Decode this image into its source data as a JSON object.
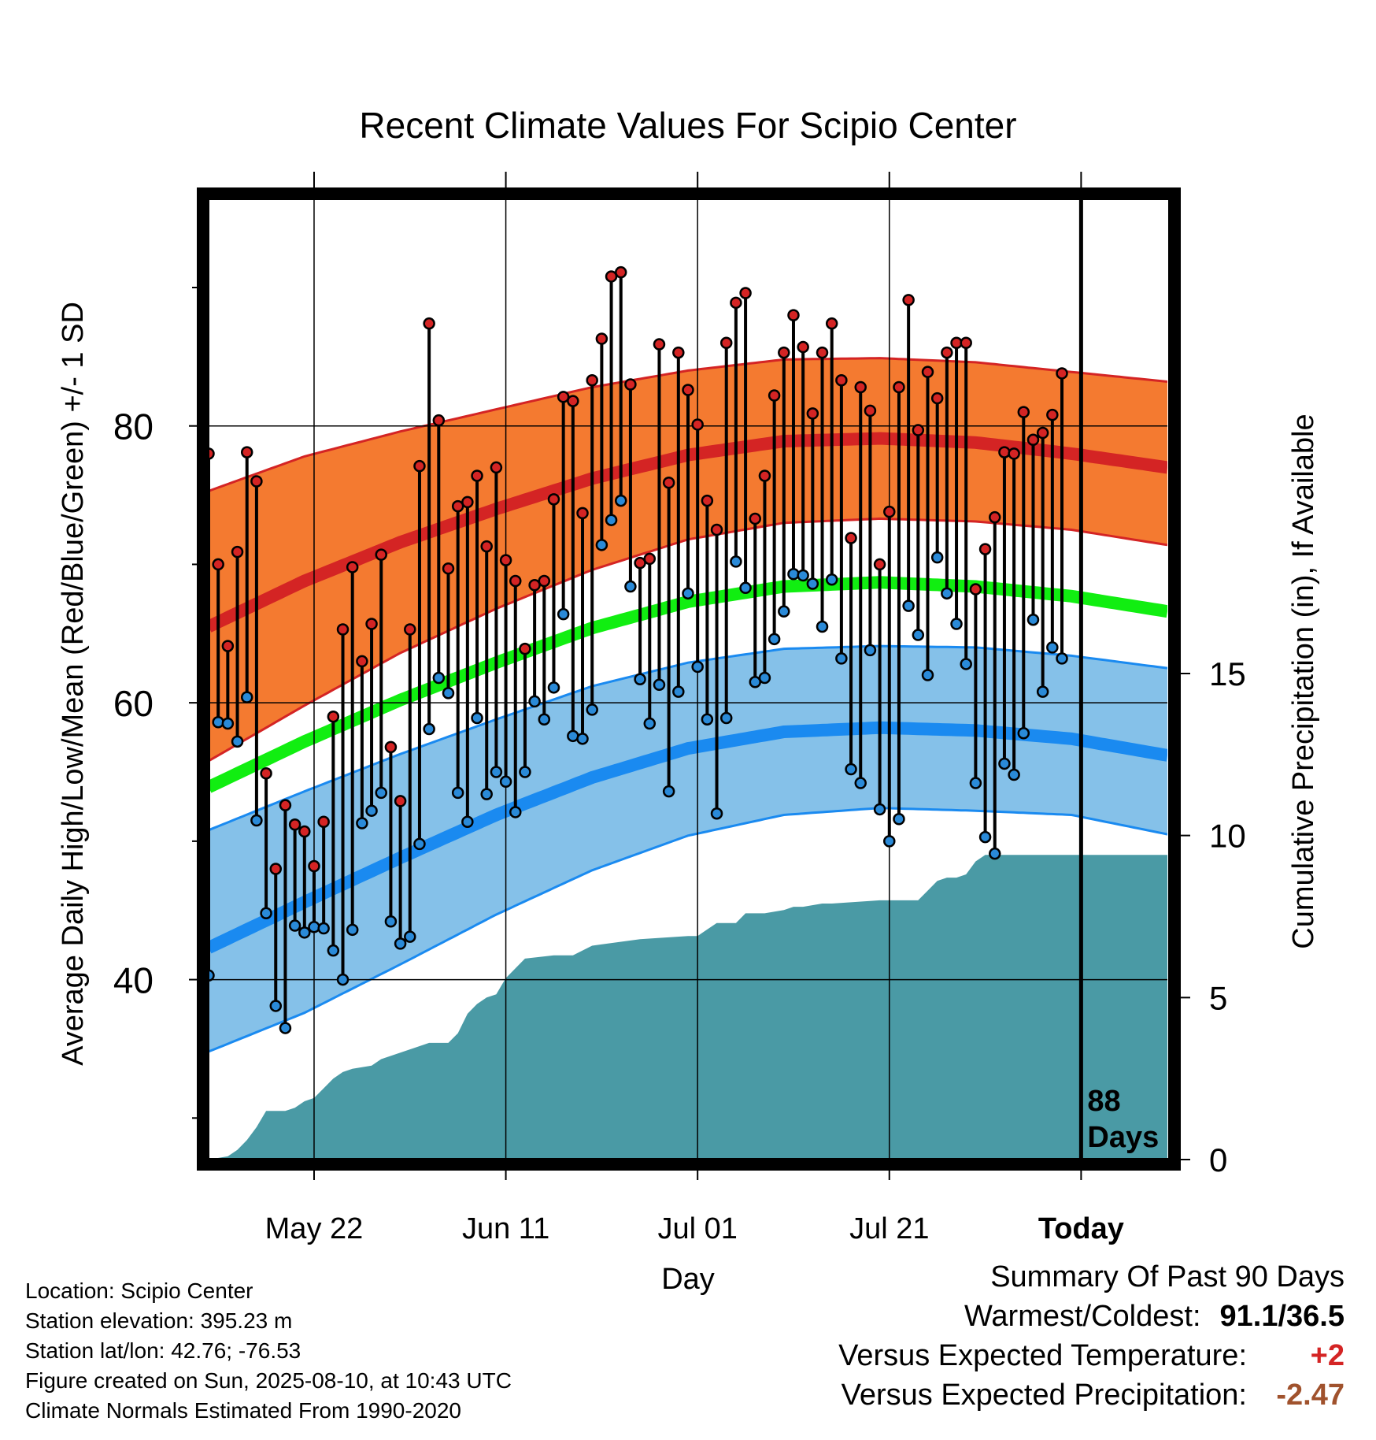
{
  "chart_data": {
    "type": "line",
    "title": "Recent Climate Values For Scipio Center",
    "xlabel": "Day",
    "ylabel": "Average Daily High/Low/Mean (Red/Blue/Green) +/- 1 SD",
    "y2label": "Cumulative Precipitation (in), If Available",
    "x_tick_labels": [
      "May 22",
      "Jun 11",
      "Jul 01",
      "Jul 21",
      "Today"
    ],
    "x_tick_day_index": [
      11,
      31,
      51,
      71,
      91
    ],
    "x_range_days": [
      0,
      100
    ],
    "ylim": [
      27,
      97
    ],
    "y_ticks": [
      40,
      60,
      80
    ],
    "y_minor_ticks": [
      30,
      50,
      70,
      90
    ],
    "y2lim": [
      0,
      29.9
    ],
    "y2_ticks": [
      0,
      5,
      10,
      15
    ],
    "today_marker_day": 91,
    "today_label": [
      "88",
      "Days"
    ],
    "grid": true,
    "normals": {
      "days": [
        0,
        10,
        20,
        30,
        40,
        50,
        60,
        70,
        80,
        90,
        100
      ],
      "mean_high": [
        65.5,
        68.8,
        71.6,
        74.0,
        76.2,
        77.9,
        78.9,
        79.1,
        78.8,
        78.0,
        77.0
      ],
      "high_upper": [
        75.3,
        77.8,
        79.6,
        81.2,
        82.8,
        84.0,
        84.8,
        84.9,
        84.6,
        83.9,
        83.2
      ],
      "high_lower": [
        55.8,
        59.8,
        63.6,
        66.8,
        69.6,
        71.8,
        73.0,
        73.3,
        73.1,
        72.5,
        71.4
      ],
      "mean_low": [
        42.3,
        45.6,
        48.8,
        51.9,
        54.6,
        56.7,
        57.9,
        58.2,
        58.0,
        57.4,
        56.2
      ],
      "low_upper": [
        50.8,
        53.6,
        56.3,
        58.8,
        61.2,
        62.9,
        63.9,
        64.1,
        64.0,
        63.4,
        62.5
      ],
      "low_lower": [
        34.8,
        37.6,
        41.1,
        44.7,
        47.9,
        50.4,
        51.9,
        52.4,
        52.2,
        51.9,
        50.5
      ],
      "mean": [
        53.9,
        57.2,
        60.2,
        62.9,
        65.4,
        67.3,
        68.4,
        68.7,
        68.4,
        67.7,
        66.6
      ]
    },
    "daily": {
      "start_day": 0,
      "high": [
        78.0,
        70.0,
        64.1,
        70.9,
        78.1,
        76.0,
        54.9,
        48.0,
        52.6,
        51.2,
        50.7,
        48.2,
        51.4,
        59.0,
        65.3,
        69.8,
        63.0,
        65.7,
        70.7,
        56.8,
        52.9,
        65.3,
        77.1,
        87.4,
        80.4,
        69.7,
        74.2,
        74.5,
        76.4,
        71.3,
        77.0,
        70.3,
        68.8,
        63.9,
        68.5,
        68.8,
        74.7,
        82.1,
        81.8,
        73.7,
        83.3,
        86.3,
        90.8,
        91.1,
        83.0,
        70.1,
        70.4,
        85.9,
        75.9,
        85.3,
        82.6,
        80.1,
        74.6,
        72.5,
        86.0,
        88.9,
        89.6,
        73.3,
        76.4,
        82.2,
        85.3,
        88.0,
        85.7,
        80.9,
        85.3,
        87.4,
        83.3,
        71.9,
        82.8,
        81.1,
        70.0,
        73.8,
        82.8,
        89.1,
        79.7,
        83.9,
        82.0,
        85.3,
        86.0,
        86.0,
        68.2,
        71.1,
        73.4,
        78.1,
        78.0,
        81.0,
        79.0,
        79.5,
        80.8,
        83.8
      ],
      "low": [
        40.3,
        58.6,
        58.5,
        57.2,
        60.4,
        51.5,
        44.8,
        38.1,
        36.5,
        43.9,
        43.4,
        43.8,
        43.7,
        42.1,
        40.0,
        43.6,
        51.3,
        52.2,
        53.5,
        44.2,
        42.6,
        43.1,
        49.8,
        58.1,
        61.8,
        60.7,
        53.5,
        51.4,
        58.9,
        53.4,
        55.0,
        54.3,
        52.1,
        55.0,
        60.1,
        58.8,
        61.1,
        66.4,
        57.6,
        57.4,
        59.5,
        71.4,
        73.2,
        74.6,
        68.4,
        61.7,
        58.5,
        61.3,
        53.6,
        60.8,
        67.9,
        62.6,
        58.8,
        52.0,
        58.9,
        70.2,
        68.3,
        61.5,
        61.8,
        64.6,
        66.6,
        69.3,
        69.2,
        68.6,
        65.5,
        68.9,
        63.2,
        55.2,
        54.2,
        63.8,
        52.3,
        50.0,
        51.6,
        67.0,
        64.9,
        62.0,
        70.5,
        67.9,
        65.7,
        62.8,
        54.2,
        50.3,
        49.1,
        55.6,
        54.8,
        57.8,
        66.0,
        60.8,
        64.0,
        63.2
      ]
    },
    "precip_cumulative": {
      "days": [
        0,
        2,
        3,
        4,
        5,
        6,
        8,
        9,
        10,
        11,
        12,
        13,
        14,
        15,
        17,
        18,
        19,
        20,
        21,
        22,
        23,
        24,
        25,
        26,
        27,
        28,
        29,
        30,
        31,
        33,
        36,
        37,
        38,
        40,
        45,
        50,
        51,
        52,
        53,
        54,
        55,
        56,
        58,
        60,
        61,
        62,
        64,
        65,
        70,
        74,
        75,
        76,
        77,
        78,
        79,
        80,
        81,
        82,
        100
      ],
      "values": [
        0.0,
        0.1,
        0.3,
        0.6,
        1.0,
        1.5,
        1.5,
        1.6,
        1.8,
        1.9,
        2.2,
        2.5,
        2.7,
        2.8,
        2.9,
        3.1,
        3.2,
        3.3,
        3.4,
        3.5,
        3.6,
        3.6,
        3.6,
        3.9,
        4.5,
        4.8,
        5.0,
        5.1,
        5.6,
        6.2,
        6.3,
        6.3,
        6.3,
        6.6,
        6.8,
        6.9,
        6.9,
        7.1,
        7.3,
        7.3,
        7.3,
        7.6,
        7.6,
        7.7,
        7.8,
        7.8,
        7.9,
        7.9,
        8.0,
        8.0,
        8.3,
        8.6,
        8.7,
        8.7,
        8.8,
        9.2,
        9.4,
        9.4,
        9.4
      ]
    },
    "colors": {
      "high_band": "#f47a30",
      "high_line": "#d42424",
      "high_edge": "#d42424",
      "low_band": "#85c1e9",
      "low_line": "#1a8af0",
      "low_edge": "#1a8af0",
      "mean_line": "#11ee11",
      "precip": "#4a9aa5",
      "high_dot": "#d42424",
      "low_dot": "#2a8ad8"
    }
  },
  "info": {
    "location": "Location: Scipio Center",
    "elevation": "Station elevation: 395.23 m",
    "latlon": "Station lat/lon: 42.76; -76.53",
    "created": "Figure created on Sun, 2025-08-10, at 10:43 UTC",
    "normals": "Climate Normals Estimated From 1990-2020"
  },
  "summary": {
    "title": "Summary Of Past 90 Days",
    "warmest_label": "Warmest/Coldest:",
    "warmest_value": "91.1/36.5",
    "temp_label": "Versus Expected Temperature:",
    "temp_value": "+2",
    "temp_color": "#d42424",
    "precip_label": "Versus Expected Precipitation:",
    "precip_value": "-2.47",
    "precip_color": "#a0522d"
  }
}
